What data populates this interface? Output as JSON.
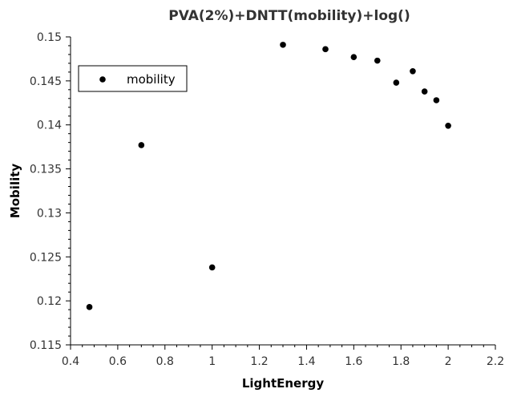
{
  "chart_data": {
    "type": "scatter",
    "title": "PVA(2%)+DNTT(mobility)+log()",
    "xlabel": "LightEnergy",
    "ylabel": "Mobility",
    "xlim": [
      0.4,
      2.2
    ],
    "ylim": [
      0.115,
      0.15
    ],
    "xticks": [
      "0.4",
      "0.6",
      "0.8",
      "1",
      "1.2",
      "1.4",
      "1.6",
      "1.8",
      "2",
      "2.2"
    ],
    "yticks": [
      "0.115",
      "0.12",
      "0.125",
      "0.13",
      "0.135",
      "0.14",
      "0.145",
      "0.15"
    ],
    "grid": false,
    "legend_position": "top-left",
    "series": [
      {
        "name": "mobility",
        "color": "#000000",
        "marker": "circle",
        "x": [
          0.48,
          0.7,
          1.0,
          1.3,
          1.48,
          1.6,
          1.7,
          1.78,
          1.85,
          1.9,
          1.95,
          2.0
        ],
        "y": [
          0.1193,
          0.1377,
          0.1238,
          0.1491,
          0.1486,
          0.1477,
          0.1473,
          0.1448,
          0.1461,
          0.1438,
          0.1428,
          0.1399
        ]
      }
    ]
  }
}
